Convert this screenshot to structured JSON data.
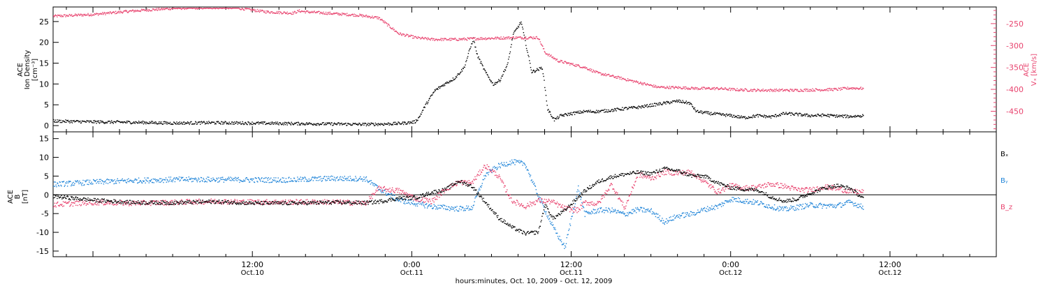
{
  "colors": {
    "black": "#000000",
    "pink": "#e8436e",
    "blue": "#1f84d8"
  },
  "x_axis": {
    "title": "hours:minutes, Oct. 10, 2009 - Oct. 12, 2009",
    "start_hour": -3,
    "end_hour": 68,
    "major_ticks": [
      {
        "hour": 12,
        "time": "12:00",
        "date": "Oct.10"
      },
      {
        "hour": 24,
        "time": "0:00",
        "date": "Oct.11"
      },
      {
        "hour": 36,
        "time": "12:00",
        "date": "Oct.11"
      },
      {
        "hour": 48,
        "time": "0:00",
        "date": "Oct.12"
      },
      {
        "hour": 60,
        "time": "12:00",
        "date": "Oct.12"
      }
    ]
  },
  "chart_data": [
    {
      "type": "scatter",
      "panel": "top",
      "left_axis": {
        "label_line1": "ACE",
        "label_line2": "Ion Density",
        "label_line3": "[cm⁻³]",
        "ticks": [
          0,
          5,
          10,
          15,
          20,
          25
        ],
        "ylim": [
          -1.5,
          28.5
        ]
      },
      "right_axis": {
        "label_line1": "ACE",
        "label_line2": "Vₓ [km/s]",
        "ticks": [
          -250,
          -300,
          -350,
          -400,
          -450
        ],
        "ylim": [
          -497,
          -212
        ]
      },
      "series": [
        {
          "key": "density",
          "axis": "left",
          "color": "#000000",
          "points": [
            [
              -3,
              1.2
            ],
            [
              0,
              1.0
            ],
            [
              3,
              0.9
            ],
            [
              6,
              0.7
            ],
            [
              9,
              0.8
            ],
            [
              12,
              0.7
            ],
            [
              15,
              0.6
            ],
            [
              18,
              0.5
            ],
            [
              20.5,
              0.4
            ],
            [
              22,
              0.5
            ],
            [
              22.9,
              0.6
            ],
            [
              23.7,
              0.8
            ],
            [
              24.2,
              1.0
            ],
            [
              24.5,
              2.0
            ],
            [
              25,
              5.0
            ],
            [
              25.7,
              8.5
            ],
            [
              26.4,
              10.0
            ],
            [
              27.2,
              11.5
            ],
            [
              27.9,
              14.0
            ],
            [
              28.6,
              21.0
            ],
            [
              28.9,
              17.0
            ],
            [
              29.5,
              13.0
            ],
            [
              30.1,
              10.0
            ],
            [
              30.6,
              11.0
            ],
            [
              31.2,
              15.0
            ],
            [
              31.6,
              22.0
            ],
            [
              32.2,
              25.0
            ],
            [
              33,
              13.0
            ],
            [
              33.8,
              14.0
            ],
            [
              34.2,
              4.0
            ],
            [
              34.7,
              1.5
            ],
            [
              35.2,
              2.5
            ],
            [
              36,
              3.0
            ],
            [
              37,
              3.5
            ],
            [
              38,
              3.5
            ],
            [
              39,
              3.8
            ],
            [
              40,
              4.2
            ],
            [
              41,
              4.5
            ],
            [
              42,
              5.0
            ],
            [
              43,
              5.5
            ],
            [
              44,
              6.0
            ],
            [
              44.9,
              5.5
            ],
            [
              45.4,
              3.5
            ],
            [
              46.5,
              3.0
            ],
            [
              48,
              2.5
            ],
            [
              49,
              2.0
            ],
            [
              50,
              2.5
            ],
            [
              51,
              2.2
            ],
            [
              52,
              3.0
            ],
            [
              53,
              2.8
            ],
            [
              54,
              2.5
            ],
            [
              55,
              2.6
            ],
            [
              56,
              2.4
            ],
            [
              57,
              2.3
            ],
            [
              58,
              2.5
            ]
          ]
        },
        {
          "key": "vx",
          "axis": "right",
          "color": "#e8436e",
          "points": [
            [
              -3,
              -232
            ],
            [
              0,
              -228
            ],
            [
              3,
              -220
            ],
            [
              6,
              -214
            ],
            [
              8,
              -213
            ],
            [
              10,
              -212
            ],
            [
              11,
              -214
            ],
            [
              13,
              -222
            ],
            [
              15,
              -225
            ],
            [
              15.5,
              -220
            ],
            [
              16,
              -222
            ],
            [
              20,
              -230
            ],
            [
              21.5,
              -236
            ],
            [
              23,
              -272
            ],
            [
              24.3,
              -281
            ],
            [
              25.5,
              -285
            ],
            [
              27.3,
              -285
            ],
            [
              29,
              -283
            ],
            [
              30.5,
              -282
            ],
            [
              31.5,
              -281
            ],
            [
              32.5,
              -281
            ],
            [
              33.5,
              -281
            ],
            [
              34,
              -315
            ],
            [
              35,
              -334
            ],
            [
              37,
              -349
            ],
            [
              38,
              -362
            ],
            [
              39.5,
              -372
            ],
            [
              41,
              -383
            ],
            [
              42.5,
              -394
            ],
            [
              44,
              -395
            ],
            [
              45.5,
              -397
            ],
            [
              47,
              -397
            ],
            [
              48.5,
              -400
            ],
            [
              50,
              -401
            ],
            [
              51.5,
              -401
            ],
            [
              53,
              -401
            ],
            [
              54.5,
              -400
            ],
            [
              56,
              -399
            ],
            [
              57,
              -396
            ],
            [
              58,
              -397
            ]
          ]
        }
      ]
    },
    {
      "type": "scatter",
      "panel": "bottom",
      "left_axis": {
        "label_line1": "ACE",
        "label_line2": "B",
        "label_line3": "[nT]",
        "ticks": [
          -15,
          -10,
          -5,
          0,
          5,
          10,
          15
        ],
        "ylim": [
          -16.5,
          16.8
        ]
      },
      "zero_line": 0,
      "series": [
        {
          "key": "bx",
          "name": "Bₓ",
          "color": "#000000",
          "points": [
            [
              -3,
              -0.3
            ],
            [
              0,
              -1.3
            ],
            [
              3,
              -1.9
            ],
            [
              6,
              -2.0
            ],
            [
              9,
              -1.7
            ],
            [
              12,
              -2.1
            ],
            [
              15,
              -2.1
            ],
            [
              18,
              -1.9
            ],
            [
              20.5,
              -2.0
            ],
            [
              21.5,
              -1.7
            ],
            [
              23,
              -0.8
            ],
            [
              24.3,
              -0.6
            ],
            [
              25.5,
              0.8
            ],
            [
              26.5,
              1.5
            ],
            [
              27.5,
              3.8
            ],
            [
              28.5,
              2.4
            ],
            [
              30.5,
              -6.0
            ],
            [
              31.5,
              -8.5
            ],
            [
              32.5,
              -10.2
            ],
            [
              33.5,
              -9.8
            ],
            [
              34,
              -2.5
            ],
            [
              34.6,
              -6.2
            ],
            [
              35.5,
              -4.0
            ],
            [
              37,
              1.2
            ],
            [
              38,
              3.6
            ],
            [
              39,
              4.9
            ],
            [
              40,
              5.6
            ],
            [
              41,
              6.1
            ],
            [
              42,
              5.8
            ],
            [
              43,
              7.1
            ],
            [
              44,
              6.5
            ],
            [
              45,
              5.2
            ],
            [
              46,
              5.1
            ],
            [
              47,
              3.3
            ],
            [
              48,
              2.0
            ],
            [
              49,
              1.6
            ],
            [
              50,
              1.4
            ],
            [
              51,
              -0.4
            ],
            [
              52,
              -1.6
            ],
            [
              53,
              -1.0
            ],
            [
              54,
              0.6
            ],
            [
              55,
              1.9
            ],
            [
              56,
              2.6
            ],
            [
              57,
              1.8
            ],
            [
              58,
              -1.0
            ]
          ]
        },
        {
          "key": "by",
          "name": "Bᵧ",
          "color": "#1f84d8",
          "points": [
            [
              -3,
              2.9
            ],
            [
              0,
              3.5
            ],
            [
              3,
              3.9
            ],
            [
              6,
              4.2
            ],
            [
              9,
              4.2
            ],
            [
              12,
              4.1
            ],
            [
              15,
              4.1
            ],
            [
              18,
              4.5
            ],
            [
              20.5,
              4.4
            ],
            [
              21.5,
              1.7
            ],
            [
              23,
              -1.3
            ],
            [
              24.3,
              -2.2
            ],
            [
              25.5,
              -3.0
            ],
            [
              27.5,
              -3.6
            ],
            [
              28.5,
              -3.4
            ],
            [
              29.5,
              5.4
            ],
            [
              30.5,
              7.8
            ],
            [
              31.5,
              8.9
            ],
            [
              32.5,
              8.4
            ],
            [
              33.5,
              -0.2
            ],
            [
              34.6,
              -8.5
            ],
            [
              35.5,
              -14.0
            ],
            [
              36.5,
              2.0
            ],
            [
              37,
              -5.0
            ],
            [
              38,
              -4.0
            ],
            [
              39,
              -4.0
            ],
            [
              40,
              -5.1
            ],
            [
              41,
              -3.8
            ],
            [
              42,
              -4.2
            ],
            [
              43,
              -7.1
            ],
            [
              44,
              -5.5
            ],
            [
              45,
              -5.0
            ],
            [
              46,
              -3.8
            ],
            [
              47,
              -3.0
            ],
            [
              48,
              -1.0
            ],
            [
              49,
              -1.5
            ],
            [
              50,
              -2.0
            ],
            [
              51,
              -3.0
            ],
            [
              52,
              -3.8
            ],
            [
              53,
              -3.2
            ],
            [
              54,
              -2.6
            ],
            [
              55,
              -2.8
            ],
            [
              56,
              -2.8
            ],
            [
              57,
              -1.8
            ],
            [
              58,
              -3.3
            ]
          ]
        },
        {
          "key": "bz",
          "name": "B_z",
          "color": "#e8436e",
          "points": [
            [
              -3,
              -2.5
            ],
            [
              0,
              -1.9
            ],
            [
              3,
              -2.1
            ],
            [
              6,
              -1.9
            ],
            [
              9,
              -1.6
            ],
            [
              12,
              -1.8
            ],
            [
              15,
              -1.8
            ],
            [
              18,
              -1.8
            ],
            [
              20.5,
              -2.1
            ],
            [
              21.5,
              1.8
            ],
            [
              23,
              1.2
            ],
            [
              24.3,
              -0.9
            ],
            [
              25.5,
              -1.6
            ],
            [
              26.5,
              1.6
            ],
            [
              27.5,
              3.5
            ],
            [
              28.5,
              3.3
            ],
            [
              29.5,
              7.9
            ],
            [
              30.5,
              5.1
            ],
            [
              31.5,
              -1.4
            ],
            [
              32.5,
              -3.0
            ],
            [
              33.5,
              -1.4
            ],
            [
              34.5,
              -1.7
            ],
            [
              35.5,
              -3.5
            ],
            [
              36.5,
              -4.0
            ],
            [
              37,
              -1.9
            ],
            [
              38,
              -2.3
            ],
            [
              39,
              2.9
            ],
            [
              40,
              -3.4
            ],
            [
              41,
              5.6
            ],
            [
              42,
              4.5
            ],
            [
              43,
              6.2
            ],
            [
              44,
              5.9
            ],
            [
              45,
              6.2
            ],
            [
              46,
              3.6
            ],
            [
              47,
              0.9
            ],
            [
              48,
              2.6
            ],
            [
              49,
              1.9
            ],
            [
              50,
              2.2
            ],
            [
              51,
              3.0
            ],
            [
              52,
              2.4
            ],
            [
              53,
              1.5
            ],
            [
              54,
              1.4
            ],
            [
              55,
              2.3
            ],
            [
              56,
              1.8
            ],
            [
              57,
              1.0
            ],
            [
              58,
              0.9
            ]
          ]
        }
      ]
    }
  ]
}
